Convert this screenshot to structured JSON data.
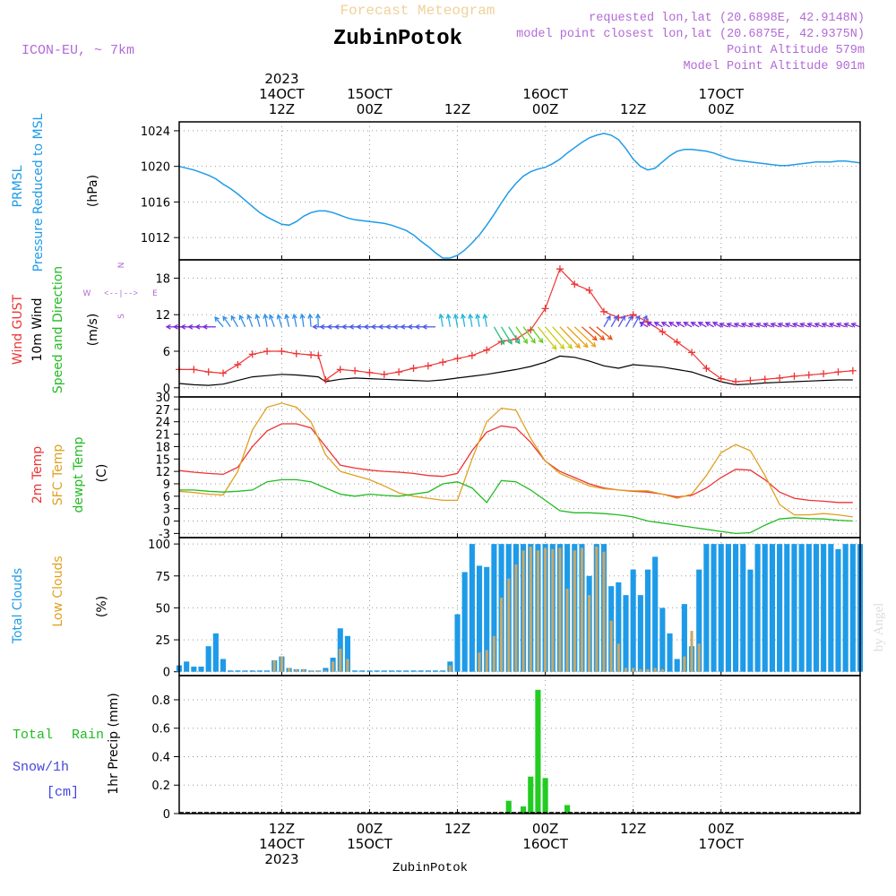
{
  "header": {
    "forecast_label": "Forecast Meteogram",
    "station": "ZubinPotok",
    "model": "ICON-EU, ~ 7km",
    "requested": "requested lon,lat (20.6898E, 42.9148N)",
    "closest": "model point closest lon,lat (20.6875E, 42.9375N)",
    "point_altitude": "Point Altitude 579m",
    "model_altitude": "Model Point Altitude 901m",
    "watermark": "by Angel",
    "footer_station": "ZubinPotok"
  },
  "colors": {
    "pressure": "#1e9be8",
    "gust": "#ee3333",
    "wind": "#000000",
    "temp": "#ee3333",
    "sfc": "#e0a020",
    "dew": "#22bb22",
    "total_clouds": "#1e9be8",
    "low_clouds": "#c8a868",
    "rain": "#22cc22",
    "snow": "#4444dd",
    "purple": "#b36ad6",
    "cyan_label": "#1e9be8"
  },
  "time_axis": {
    "start_hour": 0,
    "end_hour": 93,
    "top_ticks": [
      {
        "hour": 14,
        "lines": [
          "2023",
          "14OCT",
          "12Z"
        ]
      },
      {
        "hour": 26,
        "lines": [
          "",
          "15OCT",
          "00Z"
        ]
      },
      {
        "hour": 38,
        "lines": [
          "",
          "",
          "12Z"
        ]
      },
      {
        "hour": 50,
        "lines": [
          "",
          "16OCT",
          "00Z"
        ]
      },
      {
        "hour": 62,
        "lines": [
          "",
          "",
          "12Z"
        ]
      },
      {
        "hour": 74,
        "lines": [
          "",
          "17OCT",
          "00Z"
        ]
      }
    ],
    "bottom_ticks": [
      {
        "hour": 14,
        "lines": [
          "12Z",
          "14OCT",
          "2023"
        ]
      },
      {
        "hour": 26,
        "lines": [
          "00Z",
          "15OCT",
          ""
        ]
      },
      {
        "hour": 38,
        "lines": [
          "12Z",
          "",
          ""
        ]
      },
      {
        "hour": 50,
        "lines": [
          "00Z",
          "16OCT",
          ""
        ]
      },
      {
        "hour": 62,
        "lines": [
          "12Z",
          "",
          ""
        ]
      },
      {
        "hour": 74,
        "lines": [
          "00Z",
          "17OCT",
          ""
        ]
      }
    ]
  },
  "panels": {
    "pressure": {
      "label1": "PRMSL",
      "label2": "Pressure Reduced to MSL",
      "unit": "(hPa)",
      "ticks": [
        "1012",
        "1016",
        "1020",
        "1024"
      ]
    },
    "wind": {
      "label_gust": "Wind GUST",
      "label_wind": "10m Wind",
      "label_dir": "Speed and Direction",
      "unit": "(m/s)",
      "ticks": [
        "0",
        "6",
        "12",
        "18"
      ],
      "compass": {
        "n": "N",
        "s": "S",
        "w": "W",
        "e": "E",
        "arrow": "<--|-->"
      }
    },
    "temp": {
      "label_temp": "2m Temp",
      "label_sfc": "SFC Temp",
      "label_dew": "dewpt Temp",
      "unit": "(C)",
      "ticks": [
        "-3",
        "0",
        "3",
        "6",
        "9",
        "12",
        "15",
        "18",
        "21",
        "24",
        "27",
        "30"
      ]
    },
    "clouds": {
      "label_total": "Total Clouds",
      "label_low": "Low Clouds",
      "unit": "(%)",
      "ticks": [
        "0",
        "25",
        "50",
        "75",
        "100"
      ]
    },
    "precip": {
      "label_total": "Total",
      "label_rain": "Rain",
      "label_snow": "Snow/1h",
      "label_cm": "[cm]",
      "axis_label": "1hr Precip (mm)",
      "ticks": [
        "0",
        "0.2",
        "0.4",
        "0.6",
        "0.8"
      ]
    }
  },
  "chart_data": [
    {
      "type": "line",
      "title": "PRMSL",
      "ylabel": "(hPa)",
      "ylim": [
        1009.5,
        1025
      ],
      "x": [
        0,
        1,
        2,
        3,
        4,
        5,
        6,
        7,
        8,
        9,
        10,
        11,
        12,
        13,
        14,
        15,
        16,
        17,
        18,
        19,
        20,
        21,
        22,
        23,
        24,
        25,
        26,
        27,
        28,
        29,
        30,
        31,
        32,
        33,
        34,
        35,
        36,
        37,
        38,
        39,
        40,
        41,
        42,
        43,
        44,
        45,
        46,
        47,
        48,
        49,
        50,
        51,
        52,
        53,
        54,
        55,
        56,
        57,
        58,
        59,
        60,
        61,
        62,
        63,
        64,
        65,
        66,
        67,
        68,
        69,
        70,
        71,
        72,
        73,
        74,
        75,
        76,
        77,
        78,
        79,
        80,
        81,
        82,
        83,
        84,
        85,
        86,
        87,
        88,
        89,
        90,
        91,
        92,
        93
      ],
      "series": [
        {
          "name": "PRMSL",
          "values": [
            1020.0,
            1019.8,
            1019.6,
            1019.3,
            1019.0,
            1018.6,
            1018.0,
            1017.5,
            1016.9,
            1016.2,
            1015.5,
            1014.8,
            1014.3,
            1013.9,
            1013.5,
            1013.4,
            1013.8,
            1014.4,
            1014.8,
            1015.0,
            1015.0,
            1014.8,
            1014.5,
            1014.2,
            1014.0,
            1013.9,
            1013.8,
            1013.7,
            1013.6,
            1013.4,
            1013.1,
            1012.8,
            1012.3,
            1011.6,
            1011.0,
            1010.3,
            1009.7,
            1009.7,
            1010.0,
            1010.6,
            1011.4,
            1012.3,
            1013.4,
            1014.6,
            1015.9,
            1017.1,
            1018.1,
            1018.9,
            1019.4,
            1019.7,
            1019.9,
            1020.3,
            1020.8,
            1021.5,
            1022.1,
            1022.7,
            1023.2,
            1023.5,
            1023.7,
            1023.5,
            1023.0,
            1022.0,
            1020.8,
            1020.0,
            1019.6,
            1019.8,
            1020.5,
            1021.2,
            1021.7,
            1021.9,
            1021.9,
            1021.8,
            1021.7,
            1021.5,
            1021.2,
            1020.9,
            1020.7,
            1020.6,
            1020.5,
            1020.4,
            1020.3,
            1020.2,
            1020.1,
            1020.1,
            1020.2,
            1020.3,
            1020.4,
            1020.5,
            1020.5,
            1020.5,
            1020.6,
            1020.6,
            1020.5,
            1020.4
          ]
        }
      ]
    },
    {
      "type": "line",
      "title": "Wind",
      "ylabel": "(m/s)",
      "ylim": [
        -1.5,
        21
      ],
      "x": [
        0,
        2,
        4,
        6,
        8,
        10,
        12,
        14,
        16,
        18,
        19,
        20,
        22,
        24,
        26,
        28,
        30,
        32,
        34,
        36,
        38,
        40,
        42,
        44,
        46,
        48,
        50,
        52,
        54,
        56,
        58,
        60,
        62,
        64,
        66,
        68,
        70,
        72,
        74,
        76,
        78,
        80,
        82,
        84,
        86,
        88,
        90,
        92
      ],
      "series": [
        {
          "name": "Wind GUST",
          "values": [
            3,
            3,
            2.6,
            2.4,
            3.8,
            5.5,
            6,
            6,
            5.6,
            5.4,
            5.3,
            1.3,
            3,
            2.8,
            2.5,
            2.2,
            2.6,
            3.2,
            3.6,
            4.2,
            4.8,
            5.3,
            6.2,
            7.6,
            8,
            9.5,
            13,
            19.5,
            17,
            16,
            12.5,
            11.5,
            12,
            10.8,
            9.2,
            7.5,
            5.8,
            3.2,
            1.5,
            1,
            1.2,
            1.4,
            1.6,
            1.9,
            2.1,
            2.3,
            2.6,
            2.8
          ]
        },
        {
          "name": "10m Wind",
          "values": [
            0.7,
            0.5,
            0.4,
            0.6,
            1.2,
            1.8,
            2,
            2.2,
            2.1,
            1.9,
            1.8,
            1,
            1.4,
            1.6,
            1.5,
            1.4,
            1.3,
            1.2,
            1.1,
            1.3,
            1.6,
            1.9,
            2.2,
            2.6,
            3,
            3.5,
            4.2,
            5.2,
            5,
            4.4,
            3.6,
            3.2,
            3.8,
            3.6,
            3.4,
            3,
            2.6,
            1.8,
            1,
            0.5,
            0.6,
            0.8,
            0.9,
            1,
            1.1,
            1.2,
            1.3,
            1.3
          ]
        }
      ],
      "direction_row_y": 10,
      "arrow_hours": [
        0,
        1,
        2,
        3,
        4,
        5,
        6,
        7,
        8,
        9,
        10,
        11,
        12,
        13,
        14,
        15,
        16,
        17,
        18,
        19,
        20,
        21,
        22,
        23,
        24,
        25,
        26,
        27,
        28,
        29,
        30,
        31,
        32,
        33,
        34,
        35,
        36,
        37,
        38,
        39,
        40,
        41,
        42,
        43,
        44,
        45,
        46,
        47,
        48,
        49,
        50,
        51,
        52,
        53,
        54,
        55,
        56,
        57,
        58,
        59,
        60,
        61,
        62,
        63,
        64,
        65,
        66,
        67,
        68,
        69,
        70,
        71,
        72,
        73,
        74,
        75,
        76,
        77,
        78,
        79,
        80,
        81,
        82,
        83,
        84,
        85,
        86,
        87,
        88,
        89,
        90,
        91,
        92,
        93
      ]
    },
    {
      "type": "line",
      "title": "Temperature",
      "ylabel": "(C)",
      "ylim": [
        -4,
        30
      ],
      "x": [
        0,
        2,
        4,
        6,
        8,
        10,
        12,
        14,
        16,
        18,
        20,
        22,
        24,
        26,
        28,
        30,
        32,
        34,
        36,
        38,
        40,
        42,
        44,
        46,
        48,
        50,
        52,
        54,
        56,
        58,
        60,
        62,
        64,
        66,
        68,
        70,
        72,
        74,
        76,
        78,
        80,
        82,
        84,
        86,
        88,
        90,
        92
      ],
      "series": [
        {
          "name": "2m Temp",
          "values": [
            12.2,
            11.8,
            11.5,
            11.3,
            13,
            18,
            21.8,
            23.5,
            23.5,
            22.5,
            18,
            13.5,
            12.8,
            12.3,
            12,
            11.8,
            11.5,
            11,
            10.8,
            11.5,
            17,
            21.5,
            23,
            22.5,
            19,
            14.5,
            12,
            10.5,
            9,
            8,
            7.5,
            7.2,
            7,
            6.5,
            5.8,
            6.2,
            8,
            10.5,
            12.5,
            12.3,
            10,
            7,
            5.5,
            5,
            4.8,
            4.5,
            4.5
          ]
        },
        {
          "name": "SFC Temp",
          "values": [
            7.2,
            6.9,
            6.5,
            6.3,
            12,
            22,
            27.5,
            28.5,
            27.5,
            24,
            16,
            12,
            11,
            10,
            8.5,
            6.8,
            6,
            5.5,
            5,
            5,
            15,
            24,
            27.3,
            26.8,
            20,
            14.5,
            11.5,
            10,
            8.5,
            7.8,
            7.5,
            7.3,
            7.3,
            6.5,
            5.5,
            6.5,
            11,
            16.5,
            18.5,
            17,
            11,
            4,
            1.5,
            1.5,
            1.8,
            1.5,
            1
          ]
        },
        {
          "name": "dewpt Temp",
          "values": [
            7.5,
            7.5,
            7.2,
            7,
            7.2,
            7.5,
            9.5,
            10,
            10,
            9.5,
            8,
            6.5,
            6,
            6.5,
            6.2,
            6,
            6.5,
            7,
            9,
            9.5,
            8,
            4.5,
            9.8,
            9.5,
            7.5,
            5,
            2.5,
            2,
            2,
            1.8,
            1.5,
            1,
            0,
            -0.5,
            -1,
            -1.5,
            -2,
            -2.5,
            -3,
            -2.8,
            -1,
            0.5,
            0.8,
            0.6,
            0.5,
            0.2,
            0
          ]
        }
      ]
    },
    {
      "type": "bar",
      "title": "Clouds",
      "ylabel": "(%)",
      "ylim": [
        -3,
        105
      ],
      "x": [
        0,
        1,
        2,
        3,
        4,
        5,
        6,
        7,
        8,
        9,
        10,
        11,
        12,
        13,
        14,
        15,
        16,
        17,
        18,
        19,
        20,
        21,
        22,
        23,
        24,
        25,
        26,
        27,
        28,
        29,
        30,
        31,
        32,
        33,
        34,
        35,
        36,
        37,
        38,
        39,
        40,
        41,
        42,
        43,
        44,
        45,
        46,
        47,
        48,
        49,
        50,
        51,
        52,
        53,
        54,
        55,
        56,
        57,
        58,
        59,
        60,
        61,
        62,
        63,
        64,
        65,
        66,
        67,
        68,
        69,
        70,
        71,
        72,
        73,
        74,
        75,
        76,
        77,
        78,
        79,
        80,
        81,
        82,
        83,
        84,
        85,
        86,
        87,
        88,
        89,
        90,
        91,
        92,
        93
      ],
      "series": [
        {
          "name": "Total Clouds",
          "values": [
            5,
            8,
            4,
            4,
            20,
            30,
            10,
            1,
            1,
            1,
            1,
            1,
            1,
            9,
            12,
            3,
            2,
            2,
            1,
            1,
            3,
            11,
            34,
            28,
            1,
            1,
            1,
            1,
            1,
            1,
            1,
            1,
            1,
            1,
            1,
            1,
            1,
            8,
            45,
            78,
            100,
            83,
            82,
            100,
            100,
            100,
            100,
            100,
            100,
            100,
            100,
            100,
            100,
            100,
            100,
            100,
            75,
            100,
            100,
            67,
            70,
            60,
            80,
            60,
            80,
            90,
            50,
            30,
            10,
            53,
            20,
            80,
            100,
            100,
            100,
            100,
            100,
            100,
            80,
            100,
            100,
            100,
            100,
            100,
            100,
            100,
            100,
            100,
            100,
            100,
            96,
            100,
            100,
            100
          ]
        },
        {
          "name": "Low Clouds",
          "values": [
            0,
            0,
            0,
            0,
            0,
            0,
            0,
            0,
            0,
            0,
            0,
            0,
            0,
            9,
            12,
            3,
            2,
            2,
            1,
            1,
            1,
            8,
            18,
            10,
            0,
            0,
            0,
            0,
            0,
            0,
            0,
            0,
            0,
            0,
            0,
            0,
            0,
            5,
            0,
            0,
            0,
            15,
            17,
            28,
            58,
            73,
            84,
            95,
            98,
            95,
            97,
            96,
            97,
            65,
            95,
            97,
            60,
            98,
            94,
            40,
            22,
            3,
            3,
            2,
            2,
            3,
            2,
            0,
            0,
            12,
            32,
            22,
            0,
            0,
            0,
            0,
            0,
            0,
            0,
            0,
            0,
            0,
            0,
            0,
            0,
            0,
            0,
            0,
            0,
            0,
            0,
            0,
            0,
            0
          ]
        }
      ]
    },
    {
      "type": "bar",
      "title": "1hr Precip",
      "ylabel": "1hr Precip (mm)",
      "ylim": [
        0,
        0.97
      ],
      "x": [
        45,
        47,
        48,
        49,
        50,
        53
      ],
      "series": [
        {
          "name": "Total Rain",
          "values": [
            0.09,
            0.05,
            0.26,
            0.87,
            0.25,
            0.06
          ]
        },
        {
          "name": "Snow/1h",
          "values": [
            0,
            0,
            0,
            0,
            0,
            0
          ]
        }
      ]
    }
  ]
}
